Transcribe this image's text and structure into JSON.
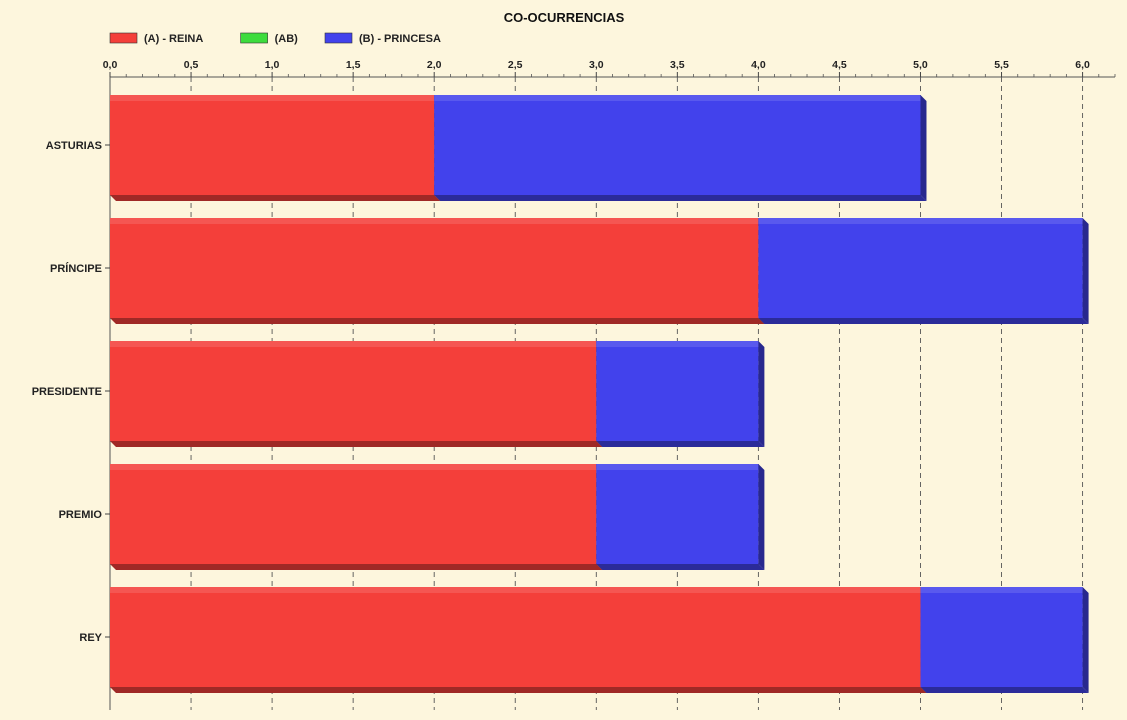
{
  "chart_data": {
    "type": "bar",
    "orientation": "horizontal",
    "stacked": true,
    "title": "CO-OCURRENCIAS",
    "categories": [
      "ASTURIAS",
      "PRÍNCIPE",
      "PRESIDENTE",
      "PREMIO",
      "REY"
    ],
    "series": [
      {
        "name": "(A) - REINA",
        "color": "#f43f3a",
        "values": [
          2,
          4,
          3,
          3,
          5
        ]
      },
      {
        "name": "(AB)",
        "color": "#3ddc3d",
        "values": [
          0,
          0,
          0,
          0,
          0
        ]
      },
      {
        "name": "(B) - PRINCESA",
        "color": "#4242ec",
        "values": [
          3,
          2,
          1,
          1,
          1
        ]
      }
    ],
    "xlim": [
      0,
      6.2
    ],
    "xticks": [
      "0,0",
      "0,5",
      "1,0",
      "1,5",
      "2,0",
      "2,5",
      "3,0",
      "3,5",
      "4,0",
      "4,5",
      "5,0",
      "5,5",
      "6,0"
    ],
    "xlabel": "",
    "ylabel": "",
    "grid": true,
    "legend_position": "top-left"
  }
}
